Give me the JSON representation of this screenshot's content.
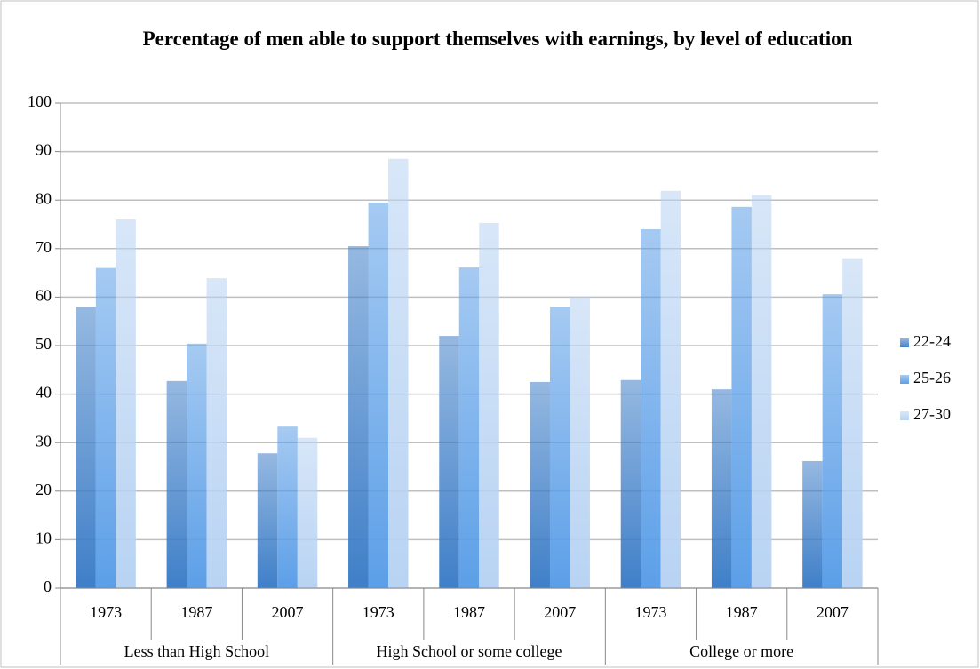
{
  "chart_data": {
    "type": "grouped-bar",
    "title": "Percentage of men able to support themselves with earnings, by level of education",
    "groups": [
      {
        "name": "Less than High School",
        "categories": [
          "1973",
          "1987",
          "2007"
        ]
      },
      {
        "name": "High School or some college",
        "categories": [
          "1973",
          "1987",
          "2007"
        ]
      },
      {
        "name": "College or more",
        "categories": [
          "1973",
          "1987",
          "2007"
        ]
      }
    ],
    "series": [
      {
        "name": "22-24",
        "color": "#3f7fc8",
        "values": [
          58,
          42.7,
          27.8,
          70.5,
          52,
          42.5,
          42.9,
          41,
          26.2
        ]
      },
      {
        "name": "25-26",
        "color": "#5c9fe8",
        "values": [
          66,
          50.4,
          33.3,
          79.5,
          66.1,
          58,
          74,
          78.6,
          60.6
        ]
      },
      {
        "name": "27-30",
        "color": "#b8d3f3",
        "values": [
          76,
          63.9,
          31,
          88.5,
          75.3,
          60,
          81.9,
          81,
          68
        ]
      }
    ],
    "ylim": [
      0,
      100
    ],
    "yticks": [
      0,
      10,
      20,
      30,
      40,
      50,
      60,
      70,
      80,
      90,
      100
    ],
    "grid": true,
    "legend": "right"
  }
}
